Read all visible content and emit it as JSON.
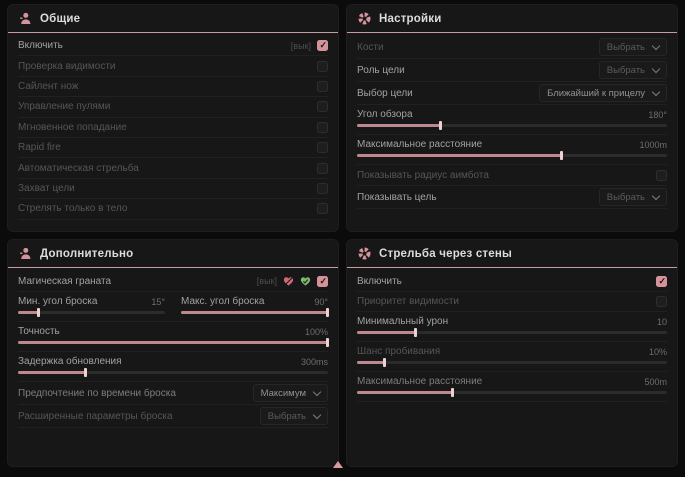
{
  "colors": {
    "accent_pink": "#d4939a",
    "slider_fill": "#bf888e",
    "panel_bg": "#171717",
    "page_bg": "#0b0b0b",
    "header_underline": "#c79ba1"
  },
  "panel_general": {
    "title": "Общие",
    "rows": {
      "enable": {
        "label": "Включить",
        "hint": "[вык]",
        "checked": true
      },
      "visibility_check": {
        "label": "Проверка видимости",
        "checked": false
      },
      "silent_knife": {
        "label": "Сайлент нож",
        "checked": false
      },
      "bullet_control": {
        "label": "Управление пулями",
        "checked": false
      },
      "instant_hit": {
        "label": "Мгновенное попадание",
        "checked": false
      },
      "rapid_fire": {
        "label": "Rapid fire",
        "checked": false
      },
      "auto_fire": {
        "label": "Автоматическая стрельба",
        "checked": false
      },
      "target_lock": {
        "label": "Захват цели",
        "checked": false
      },
      "body_only": {
        "label": "Стрелять только в тело",
        "checked": false
      }
    }
  },
  "panel_settings": {
    "title": "Настройки",
    "rows": {
      "bones": {
        "label": "Кости",
        "value": "Выбрать"
      },
      "target_role": {
        "label": "Роль цели",
        "value": "Выбрать"
      },
      "target_select": {
        "label": "Выбор цели",
        "value": "Ближайший к прицелу"
      },
      "fov": {
        "label": "Угол обзора",
        "value": "180°",
        "fill": 27
      },
      "max_distance": {
        "label": "Максимальное расстояние",
        "value": "1000m",
        "fill": 66
      },
      "show_radius": {
        "label": "Показывать радиус аимбота",
        "checked": false
      },
      "show_target": {
        "label": "Показывать цель",
        "value": "Выбрать"
      }
    }
  },
  "panel_additional": {
    "title": "Дополнительно",
    "rows": {
      "magic_grenade": {
        "label": "Магическая граната",
        "hint": "[вык]",
        "checked": true
      },
      "min_angle": {
        "label": "Мин. угол броска",
        "value": "15°",
        "fill": 14
      },
      "max_angle": {
        "label": "Макс. угол броска",
        "value": "90°",
        "fill": 100
      },
      "accuracy": {
        "label": "Точность",
        "value": "100%",
        "fill": 100
      },
      "update_delay": {
        "label": "Задержка обновления",
        "value": "300ms",
        "fill": 22
      },
      "throw_time_pref": {
        "label": "Предпочтение по времени броска",
        "value": "Максимум"
      },
      "advanced_throw": {
        "label": "Расширенные параметры броска",
        "value": "Выбрать"
      }
    }
  },
  "panel_wallbang": {
    "title": "Стрельба через стены",
    "rows": {
      "enable": {
        "label": "Включить",
        "checked": true
      },
      "visibility_priority": {
        "label": "Приоритет видимости",
        "checked": false
      },
      "min_damage": {
        "label": "Минимальный урон",
        "value": "10",
        "fill": 19
      },
      "penetration_chance": {
        "label": "Шанс пробивания",
        "value": "10%",
        "fill": 9
      },
      "max_distance": {
        "label": "Максимальное расстояние",
        "value": "500m",
        "fill": 31
      }
    }
  }
}
